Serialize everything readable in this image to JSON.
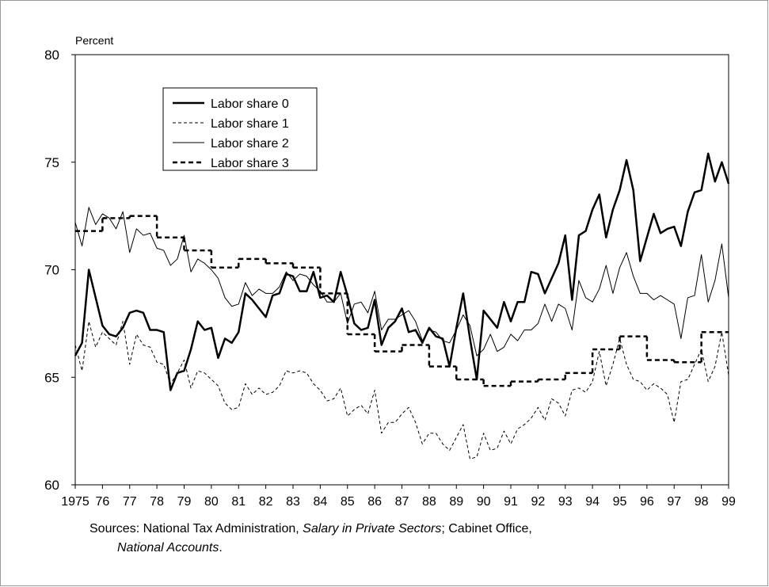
{
  "chart_data": {
    "type": "line",
    "y_label": "Percent",
    "xlim": [
      1975,
      1999
    ],
    "ylim": [
      60,
      80
    ],
    "yticks": [
      60,
      65,
      70,
      75,
      80
    ],
    "xticks": [
      1975,
      {
        "value": 1976,
        "label": "76"
      },
      {
        "value": 1977,
        "label": "77"
      },
      {
        "value": 1978,
        "label": "78"
      },
      {
        "value": 1979,
        "label": "79"
      },
      {
        "value": 1980,
        "label": "80"
      },
      {
        "value": 1981,
        "label": "81"
      },
      {
        "value": 1982,
        "label": "82"
      },
      {
        "value": 1983,
        "label": "83"
      },
      {
        "value": 1984,
        "label": "84"
      },
      {
        "value": 1985,
        "label": "85"
      },
      {
        "value": 1986,
        "label": "86"
      },
      {
        "value": 1987,
        "label": "87"
      },
      {
        "value": 1988,
        "label": "88"
      },
      {
        "value": 1989,
        "label": "89"
      },
      {
        "value": 1990,
        "label": "90"
      },
      {
        "value": 1991,
        "label": "91"
      },
      {
        "value": 1992,
        "label": "92"
      },
      {
        "value": 1993,
        "label": "93"
      },
      {
        "value": 1994,
        "label": "94"
      },
      {
        "value": 1995,
        "label": "95"
      },
      {
        "value": 1996,
        "label": "96"
      },
      {
        "value": 1997,
        "label": "97"
      },
      {
        "value": 1998,
        "label": "98"
      },
      {
        "value": 1999,
        "label": "99"
      }
    ],
    "x": [
      1975,
      1975.25,
      1975.5,
      1975.75,
      1976,
      1976.25,
      1976.5,
      1976.75,
      1977,
      1977.25,
      1977.5,
      1977.75,
      1978,
      1978.25,
      1978.5,
      1978.75,
      1979,
      1979.25,
      1979.5,
      1979.75,
      1980,
      1980.25,
      1980.5,
      1980.75,
      1981,
      1981.25,
      1981.5,
      1981.75,
      1982,
      1982.25,
      1982.5,
      1982.75,
      1983,
      1983.25,
      1983.5,
      1983.75,
      1984,
      1984.25,
      1984.5,
      1984.75,
      1985,
      1985.25,
      1985.5,
      1985.75,
      1986,
      1986.25,
      1986.5,
      1986.75,
      1987,
      1987.25,
      1987.5,
      1987.75,
      1988,
      1988.25,
      1988.5,
      1988.75,
      1989,
      1989.25,
      1989.5,
      1989.75,
      1990,
      1990.25,
      1990.5,
      1990.75,
      1991,
      1991.25,
      1991.5,
      1991.75,
      1992,
      1992.25,
      1992.5,
      1992.75,
      1993,
      1993.25,
      1993.5,
      1993.75,
      1994,
      1994.25,
      1994.5,
      1994.75,
      1995,
      1995.25,
      1995.5,
      1995.75,
      1996,
      1996.25,
      1996.5,
      1996.75,
      1997,
      1997.25,
      1997.5,
      1997.75,
      1998,
      1998.25,
      1998.5,
      1998.75,
      1999
    ],
    "series": [
      {
        "name": "Labor share 0",
        "color": "#000000",
        "width": 2.5,
        "dash": "solid",
        "values": [
          66.0,
          66.6,
          70.0,
          68.7,
          67.4,
          67.0,
          66.9,
          67.3,
          68.0,
          68.1,
          68.0,
          67.2,
          67.2,
          67.1,
          64.4,
          65.2,
          65.3,
          66.3,
          67.6,
          67.2,
          67.3,
          65.9,
          66.8,
          66.6,
          67.1,
          68.9,
          68.6,
          68.2,
          67.8,
          68.8,
          68.9,
          69.8,
          69.7,
          69.0,
          69.0,
          69.9,
          68.7,
          68.8,
          68.5,
          69.9,
          68.8,
          67.5,
          67.2,
          67.3,
          68.6,
          66.5,
          67.3,
          67.6,
          68.2,
          67.1,
          67.2,
          66.6,
          67.3,
          66.9,
          66.8,
          65.5,
          67.3,
          68.9,
          66.8,
          64.9,
          68.1,
          67.7,
          67.3,
          68.5,
          67.6,
          68.5,
          68.5,
          69.9,
          69.8,
          68.9,
          69.6,
          70.3,
          71.6,
          68.6,
          71.6,
          71.8,
          72.8,
          73.5,
          71.5,
          72.8,
          73.7,
          75.1,
          73.7,
          70.4,
          71.5,
          72.6,
          71.7,
          71.9,
          72.0,
          71.1,
          72.7,
          73.6,
          73.7,
          75.4,
          74.1,
          75.0,
          74.0
        ]
      },
      {
        "name": "Labor share 1",
        "color": "#000000",
        "width": 1,
        "dash": "dashed",
        "values": [
          66.5,
          65.3,
          67.6,
          66.4,
          67.1,
          66.8,
          66.5,
          67.6,
          65.6,
          67.0,
          66.5,
          66.4,
          65.7,
          65.6,
          64.7,
          65.2,
          65.8,
          64.5,
          65.3,
          65.2,
          64.9,
          64.6,
          63.8,
          63.5,
          63.6,
          64.7,
          64.2,
          64.5,
          64.2,
          64.3,
          64.6,
          65.3,
          65.2,
          65.3,
          65.2,
          64.7,
          64.4,
          63.9,
          64.0,
          64.5,
          63.2,
          63.5,
          63.7,
          63.3,
          64.4,
          62.4,
          62.9,
          62.9,
          63.3,
          63.6,
          62.9,
          61.9,
          62.4,
          62.4,
          61.9,
          61.6,
          62.2,
          62.8,
          61.2,
          61.3,
          62.4,
          61.6,
          61.7,
          62.5,
          61.9,
          62.6,
          62.8,
          63.1,
          63.6,
          63.0,
          64.0,
          63.8,
          63.2,
          64.4,
          64.5,
          64.3,
          64.8,
          66.2,
          64.6,
          65.6,
          66.8,
          65.6,
          64.9,
          64.8,
          64.4,
          64.7,
          64.5,
          64.2,
          62.9,
          64.8,
          64.9,
          65.6,
          66.3,
          64.8,
          65.5,
          67.1,
          65.1
        ]
      },
      {
        "name": "Labor share 2",
        "color": "#000000",
        "width": 1,
        "dash": "solid",
        "values": [
          72.2,
          71.1,
          72.9,
          72.1,
          72.6,
          72.4,
          71.9,
          72.7,
          70.8,
          71.9,
          71.6,
          71.7,
          71.0,
          70.9,
          70.2,
          70.5,
          71.6,
          69.9,
          70.5,
          70.3,
          70.0,
          69.6,
          68.7,
          68.3,
          68.4,
          69.4,
          68.8,
          69.1,
          68.9,
          68.9,
          69.2,
          69.9,
          69.5,
          69.8,
          69.7,
          69.3,
          69.0,
          68.5,
          68.5,
          68.9,
          67.5,
          68.4,
          68.5,
          68.0,
          69.0,
          67.2,
          67.7,
          67.7,
          67.9,
          68.1,
          67.6,
          66.7,
          67.2,
          67.1,
          66.7,
          66.6,
          67.2,
          67.9,
          67.4,
          66.0,
          66.3,
          67.0,
          66.2,
          66.4,
          67.0,
          66.7,
          67.2,
          67.2,
          67.5,
          68.4,
          67.6,
          68.4,
          68.2,
          67.2,
          69.5,
          68.7,
          68.5,
          69.1,
          70.2,
          68.9,
          70.1,
          70.8,
          69.7,
          68.9,
          68.9,
          68.6,
          68.8,
          68.6,
          68.4,
          66.8,
          68.7,
          68.8,
          70.7,
          68.5,
          69.5,
          71.2,
          68.7
        ]
      },
      {
        "name": "Labor share 3",
        "color": "#000000",
        "width": 2.5,
        "dash": "dashed",
        "step": true,
        "x": [
          1975,
          1976,
          1977,
          1978,
          1979,
          1980,
          1981,
          1982,
          1983,
          1984,
          1985,
          1986,
          1987,
          1988,
          1989,
          1990,
          1991,
          1992,
          1993,
          1994,
          1995,
          1996,
          1997,
          1998
        ],
        "values": [
          71.8,
          72.4,
          72.5,
          71.5,
          70.9,
          70.1,
          70.5,
          70.3,
          70.1,
          68.9,
          67.0,
          66.2,
          66.5,
          65.5,
          64.9,
          64.6,
          64.8,
          64.9,
          65.2,
          66.3,
          66.9,
          65.8,
          65.7,
          67.1
        ]
      }
    ],
    "source_lines": [
      [
        {
          "text": "Sources: National Tax Administration, "
        },
        {
          "text": "Salary in Private Sectors",
          "italic": true
        },
        {
          "text": "; Cabinet Office,"
        }
      ],
      [
        {
          "text": "National Accounts",
          "italic": true
        },
        {
          "text": "."
        }
      ]
    ]
  }
}
